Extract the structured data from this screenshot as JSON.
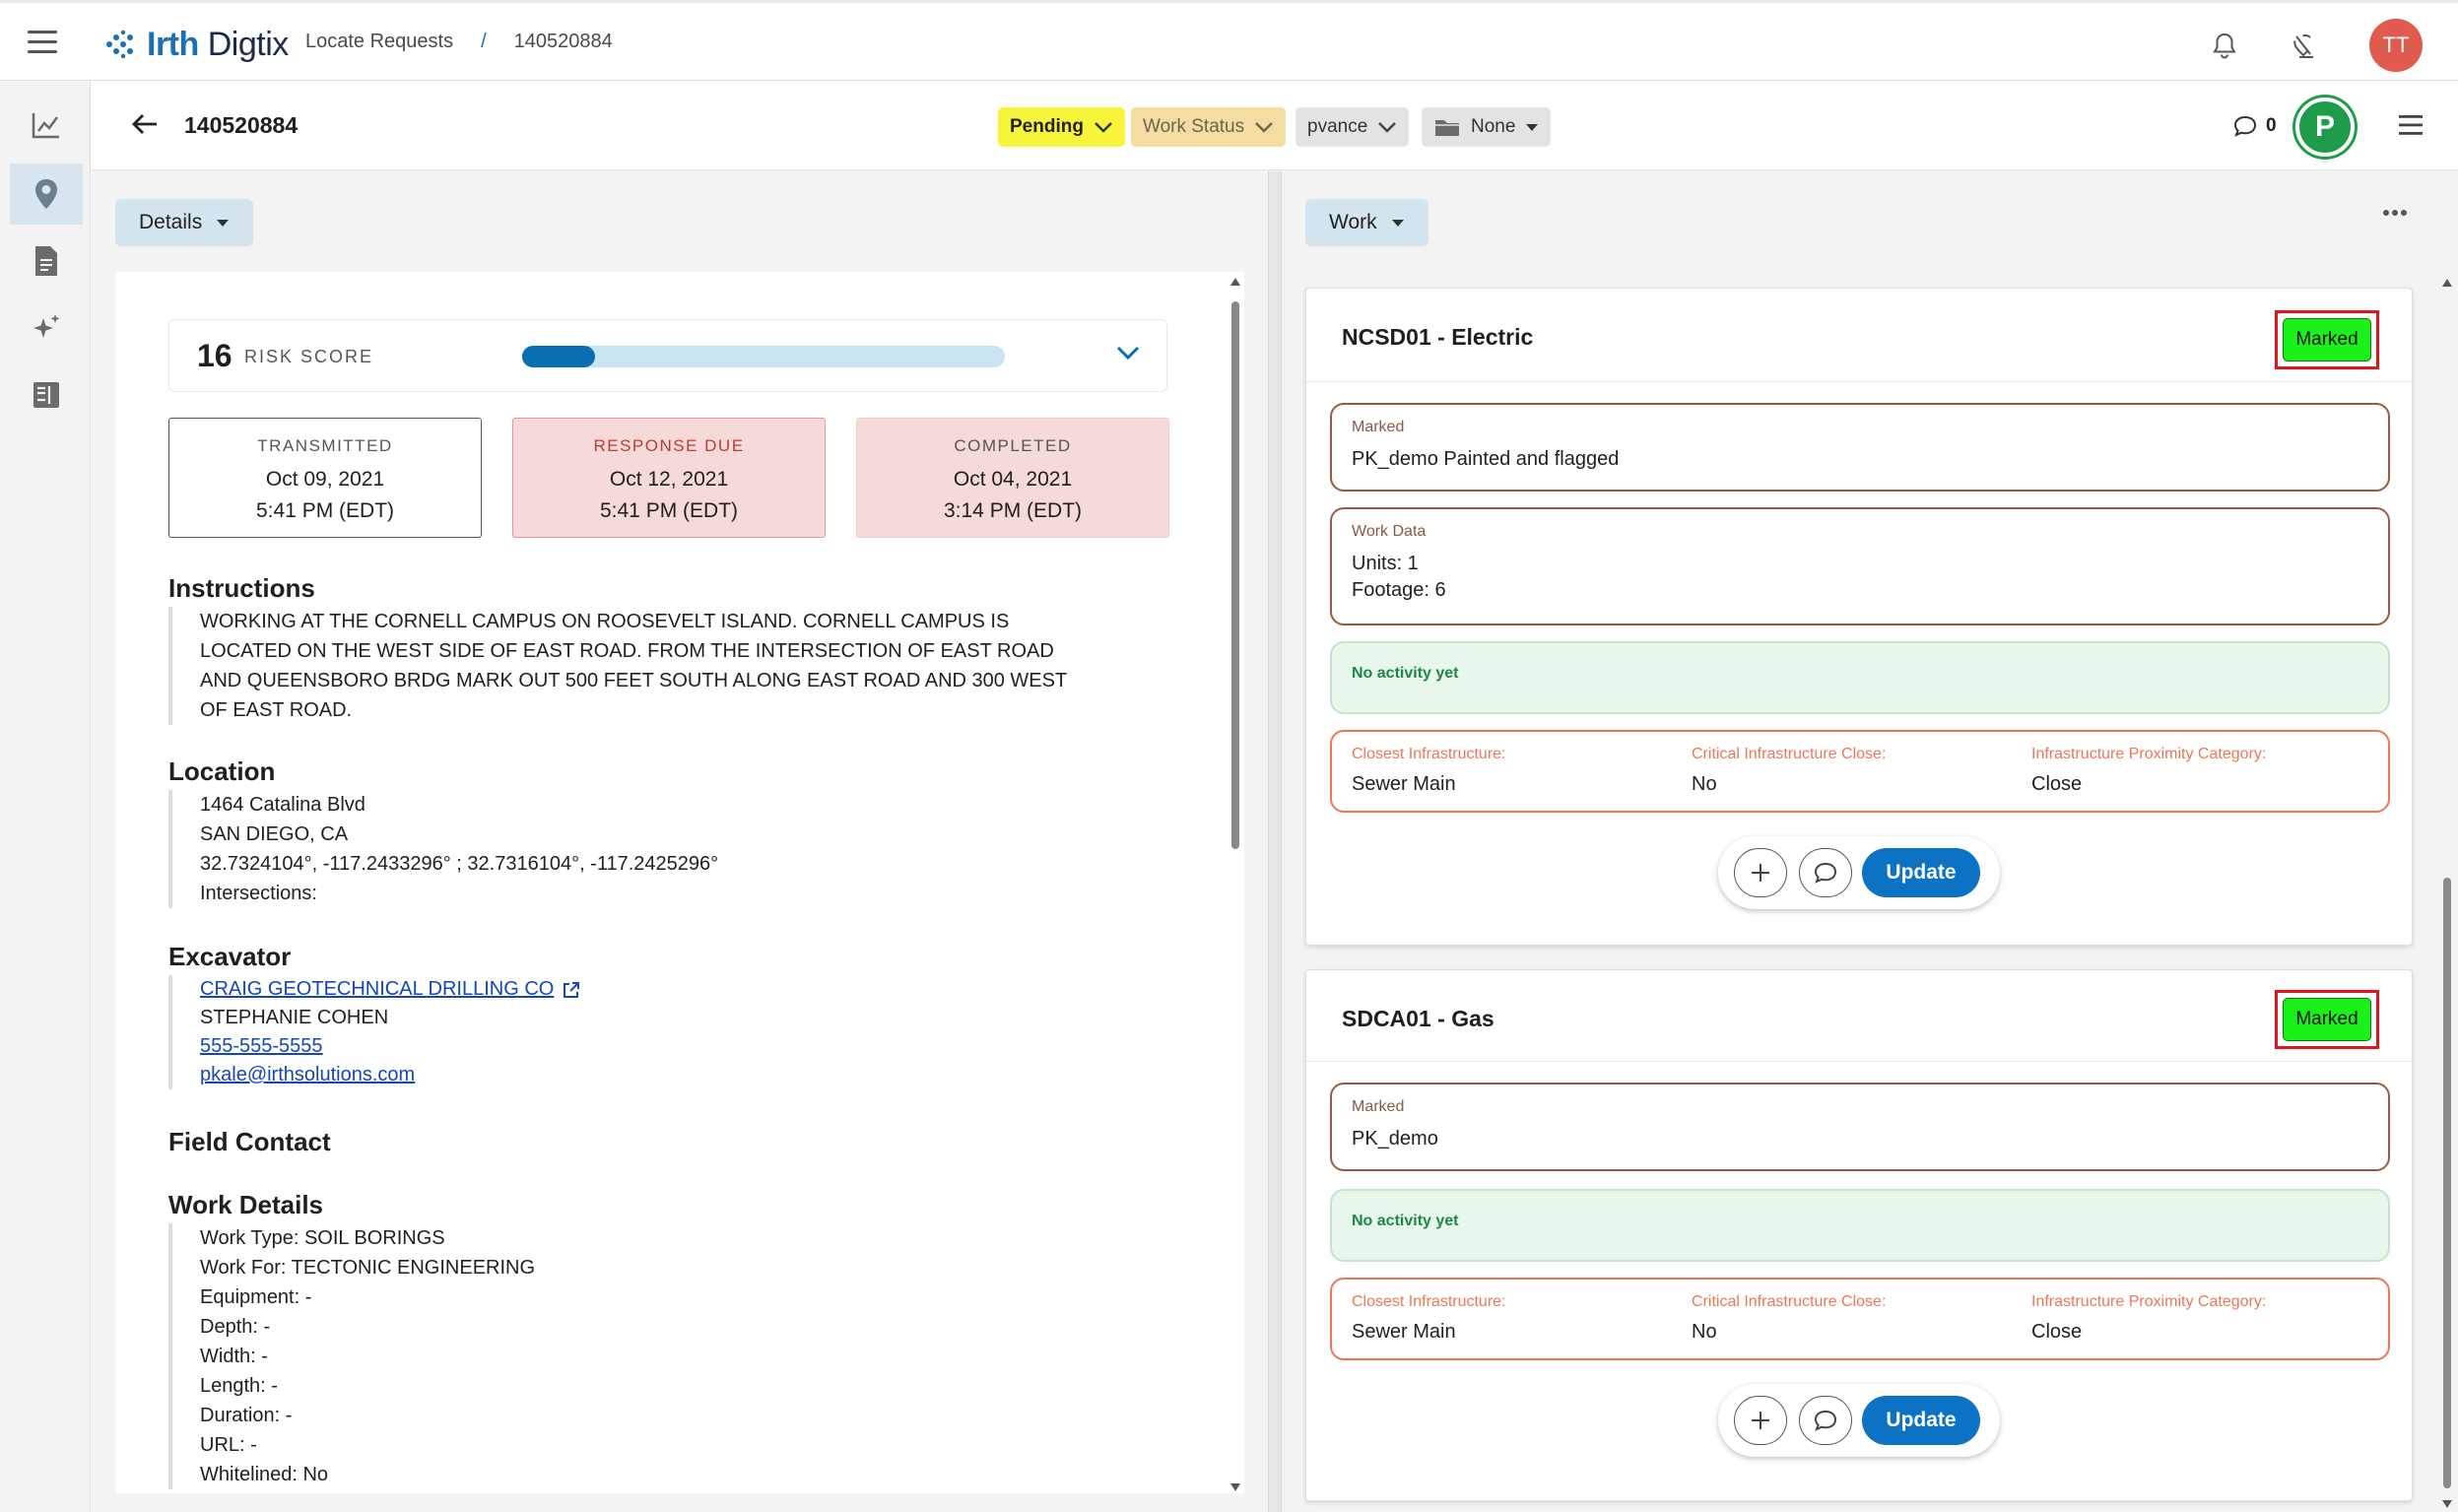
{
  "header": {
    "brand_bold": "Irth",
    "brand_rest": "Digtix",
    "breadcrumbs": [
      "Locate Requests",
      "/",
      "140520884"
    ],
    "avatar_initials": "TT"
  },
  "toolbar": {
    "ticket_id": "140520884",
    "status": "Pending",
    "work_status": "Work Status",
    "user": "pvance",
    "folder": "None",
    "comment_count": "0",
    "badge": "P",
    "colors": {
      "pending": "#f7f53b",
      "work_status": "#f5dda2",
      "badge": "#1f9c4a"
    }
  },
  "details": {
    "dropdown_label": "Details",
    "risk": {
      "score": "16",
      "label": "RISK SCORE",
      "fill_fraction": 0.15
    },
    "dates": [
      {
        "label": "TRANSMITTED",
        "date": "Oct 09, 2021",
        "time": "5:41 PM (EDT)"
      },
      {
        "label": "RESPONSE DUE",
        "date": "Oct 12, 2021",
        "time": "5:41 PM (EDT)"
      },
      {
        "label": "COMPLETED",
        "date": "Oct 04, 2021",
        "time": "3:14 PM (EDT)"
      }
    ],
    "instructions": {
      "title": "Instructions",
      "lines": [
        "WORKING AT THE CORNELL CAMPUS ON ROOSEVELT ISLAND. CORNELL CAMPUS IS",
        "LOCATED ON THE WEST SIDE OF EAST ROAD. FROM THE INTERSECTION OF EAST ROAD",
        "AND QUEENSBORO BRDG MARK OUT 500 FEET SOUTH ALONG EAST ROAD AND 300 WEST",
        "OF EAST ROAD."
      ]
    },
    "location": {
      "title": "Location",
      "street": "1464 Catalina Blvd",
      "city": "SAN DIEGO, CA",
      "coords": "32.7324104°, -117.2433296° ; 32.7316104°, -117.2425296°",
      "intersections": "Intersections:"
    },
    "excavator": {
      "title": "Excavator",
      "company": "CRAIG GEOTECHNICAL DRILLING CO",
      "contact": "STEPHANIE COHEN",
      "phone": "555-555-5555",
      "email": "pkale@irthsolutions.com"
    },
    "field_contact": {
      "title": "Field Contact"
    },
    "work_details": {
      "title": "Work Details",
      "lines": [
        "Work Type: SOIL BORINGS",
        "Work For: TECTONIC ENGINEERING",
        "Equipment: -",
        "Depth: -",
        "Width: -",
        "Length: -",
        "Duration: -",
        "URL: -",
        "Whitelined: No"
      ]
    }
  },
  "work": {
    "dropdown_label": "Work",
    "cards": [
      {
        "title": "NCSD01 - Electric",
        "status": "Marked",
        "marked_caption": "Marked",
        "marked_value": "PK_demo Painted and flagged",
        "work_data_caption": "Work Data",
        "work_data_lines": [
          "Units: 1",
          "Footage: 6"
        ],
        "activity": "No activity yet",
        "infra": [
          {
            "label": "Closest Infrastructure:",
            "value": "Sewer Main"
          },
          {
            "label": "Critical Infrastructure Close:",
            "value": "No"
          },
          {
            "label": "Infrastructure Proximity Category:",
            "value": "Close"
          }
        ],
        "update_label": "Update"
      },
      {
        "title": "SDCA01 - Gas",
        "status": "Marked",
        "marked_caption": "Marked",
        "marked_value": "PK_demo",
        "activity": "No activity yet",
        "infra": [
          {
            "label": "Closest Infrastructure:",
            "value": "Sewer Main"
          },
          {
            "label": "Critical Infrastructure Close:",
            "value": "No"
          },
          {
            "label": "Infrastructure Proximity Category:",
            "value": "Close"
          }
        ],
        "update_label": "Update"
      }
    ]
  }
}
